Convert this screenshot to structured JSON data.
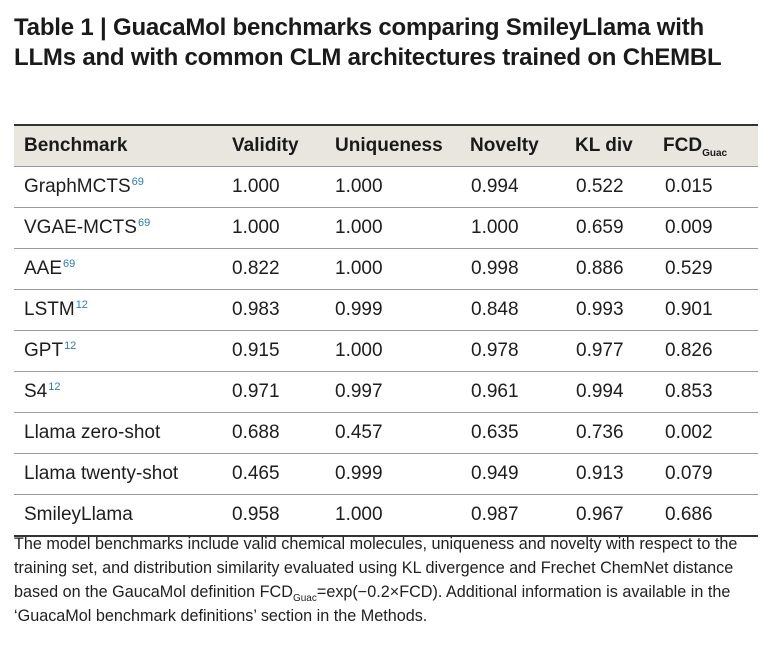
{
  "title": {
    "label": "Table 1",
    "separator": " | ",
    "text": "GuacaMol benchmarks comparing SmileyLlama with LLMs and with common CLM architectures trained on ChEMBL"
  },
  "table": {
    "headers": [
      "Benchmark",
      "Validity",
      "Uniqueness",
      "Novelty",
      "KL div",
      "FCD"
    ],
    "header_fcd_sub": "Guac",
    "rows": [
      {
        "name": "GraphMCTS",
        "ref": "69",
        "validity": "1.000",
        "uniqueness": "1.000",
        "novelty": "0.994",
        "kl": "0.522",
        "fcd": "0.015"
      },
      {
        "name": "VGAE-MCTS",
        "ref": "69",
        "validity": "1.000",
        "uniqueness": "1.000",
        "novelty": "1.000",
        "kl": "0.659",
        "fcd": "0.009"
      },
      {
        "name": "AAE",
        "ref": "69",
        "validity": "0.822",
        "uniqueness": "1.000",
        "novelty": "0.998",
        "kl": "0.886",
        "fcd": "0.529"
      },
      {
        "name": "LSTM",
        "ref": "12",
        "validity": "0.983",
        "uniqueness": "0.999",
        "novelty": "0.848",
        "kl": "0.993",
        "fcd": "0.901"
      },
      {
        "name": "GPT",
        "ref": "12",
        "validity": "0.915",
        "uniqueness": "1.000",
        "novelty": "0.978",
        "kl": "0.977",
        "fcd": "0.826"
      },
      {
        "name": "S4",
        "ref": "12",
        "validity": "0.971",
        "uniqueness": "0.997",
        "novelty": "0.961",
        "kl": "0.994",
        "fcd": "0.853"
      },
      {
        "name": "Llama zero-shot",
        "ref": "",
        "validity": "0.688",
        "uniqueness": "0.457",
        "novelty": "0.635",
        "kl": "0.736",
        "fcd": "0.002"
      },
      {
        "name": "Llama twenty-shot",
        "ref": "",
        "validity": "0.465",
        "uniqueness": "0.999",
        "novelty": "0.949",
        "kl": "0.913",
        "fcd": "0.079"
      },
      {
        "name": "SmileyLlama",
        "ref": "",
        "validity": "0.958",
        "uniqueness": "1.000",
        "novelty": "0.987",
        "kl": "0.967",
        "fcd": "0.686"
      }
    ]
  },
  "footnote": {
    "part1": "The model benchmarks include valid chemical molecules, uniqueness and novelty with respect to the training set, and distribution similarity evaluated using KL divergence and Frechet ChemNet distance based on the GaucaMol definition FCD",
    "sub": "Guac",
    "part2": "=exp(−0.2×FCD). Additional information is available in the ‘GuacaMol benchmark definitions’ section in the Methods."
  }
}
